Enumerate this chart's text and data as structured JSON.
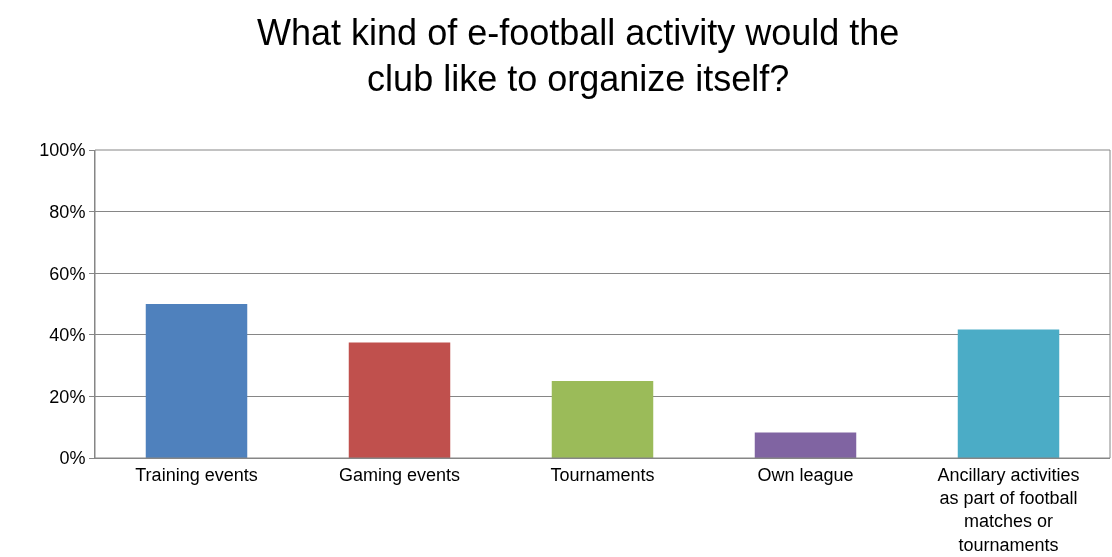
{
  "chart_data": {
    "type": "bar",
    "title": "What kind of e-football activity would the club like to organize itself?",
    "categories": [
      "Training events",
      "Gaming events",
      "Tournaments",
      "Own league",
      "Ancillary activities as part of football matches or tournaments"
    ],
    "values": [
      50,
      37.5,
      25,
      8.3,
      41.7
    ],
    "colors": [
      "#4f81bd",
      "#c0504d",
      "#9bbb59",
      "#8064a2",
      "#4bacc6"
    ],
    "ylim": [
      0,
      100
    ],
    "yticks": [
      {
        "value": 0,
        "label": "0%"
      },
      {
        "value": 20,
        "label": "20%"
      },
      {
        "value": 40,
        "label": "40%"
      },
      {
        "value": 60,
        "label": "60%"
      },
      {
        "value": 80,
        "label": "80%"
      },
      {
        "value": 100,
        "label": "100%"
      }
    ],
    "grid": "y"
  }
}
